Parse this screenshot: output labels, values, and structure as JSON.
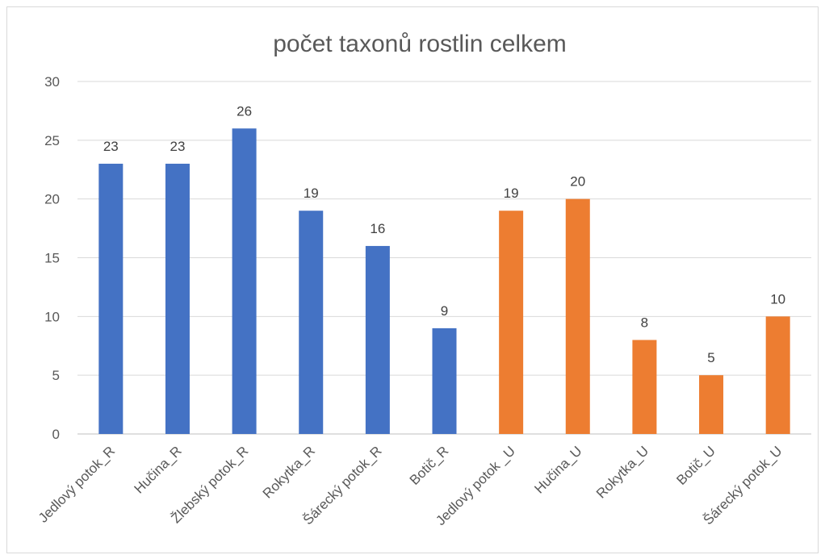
{
  "chart_data": {
    "type": "bar",
    "title": "počet taxonů  rostlin celkem",
    "xlabel": "",
    "ylabel": "",
    "ylim": [
      0,
      30
    ],
    "yticks": [
      0,
      5,
      10,
      15,
      20,
      25,
      30
    ],
    "grid": true,
    "legend": "none",
    "categories": [
      "Jedlový potok_R",
      "Hučina_R",
      "Žlebský potok_R",
      "Rokytka_R",
      "Šárecký potok_R",
      "Botič_R",
      "Jedlový potok _U",
      "Hučina_U",
      "Rokytka_U",
      "Botič_U",
      "Šárecký potok_U"
    ],
    "values": [
      23,
      23,
      26,
      19,
      16,
      9,
      19,
      20,
      8,
      5,
      10
    ],
    "colors": [
      "#4472c4",
      "#4472c4",
      "#4472c4",
      "#4472c4",
      "#4472c4",
      "#4472c4",
      "#ed7d31",
      "#ed7d31",
      "#ed7d31",
      "#ed7d31",
      "#ed7d31"
    ]
  }
}
